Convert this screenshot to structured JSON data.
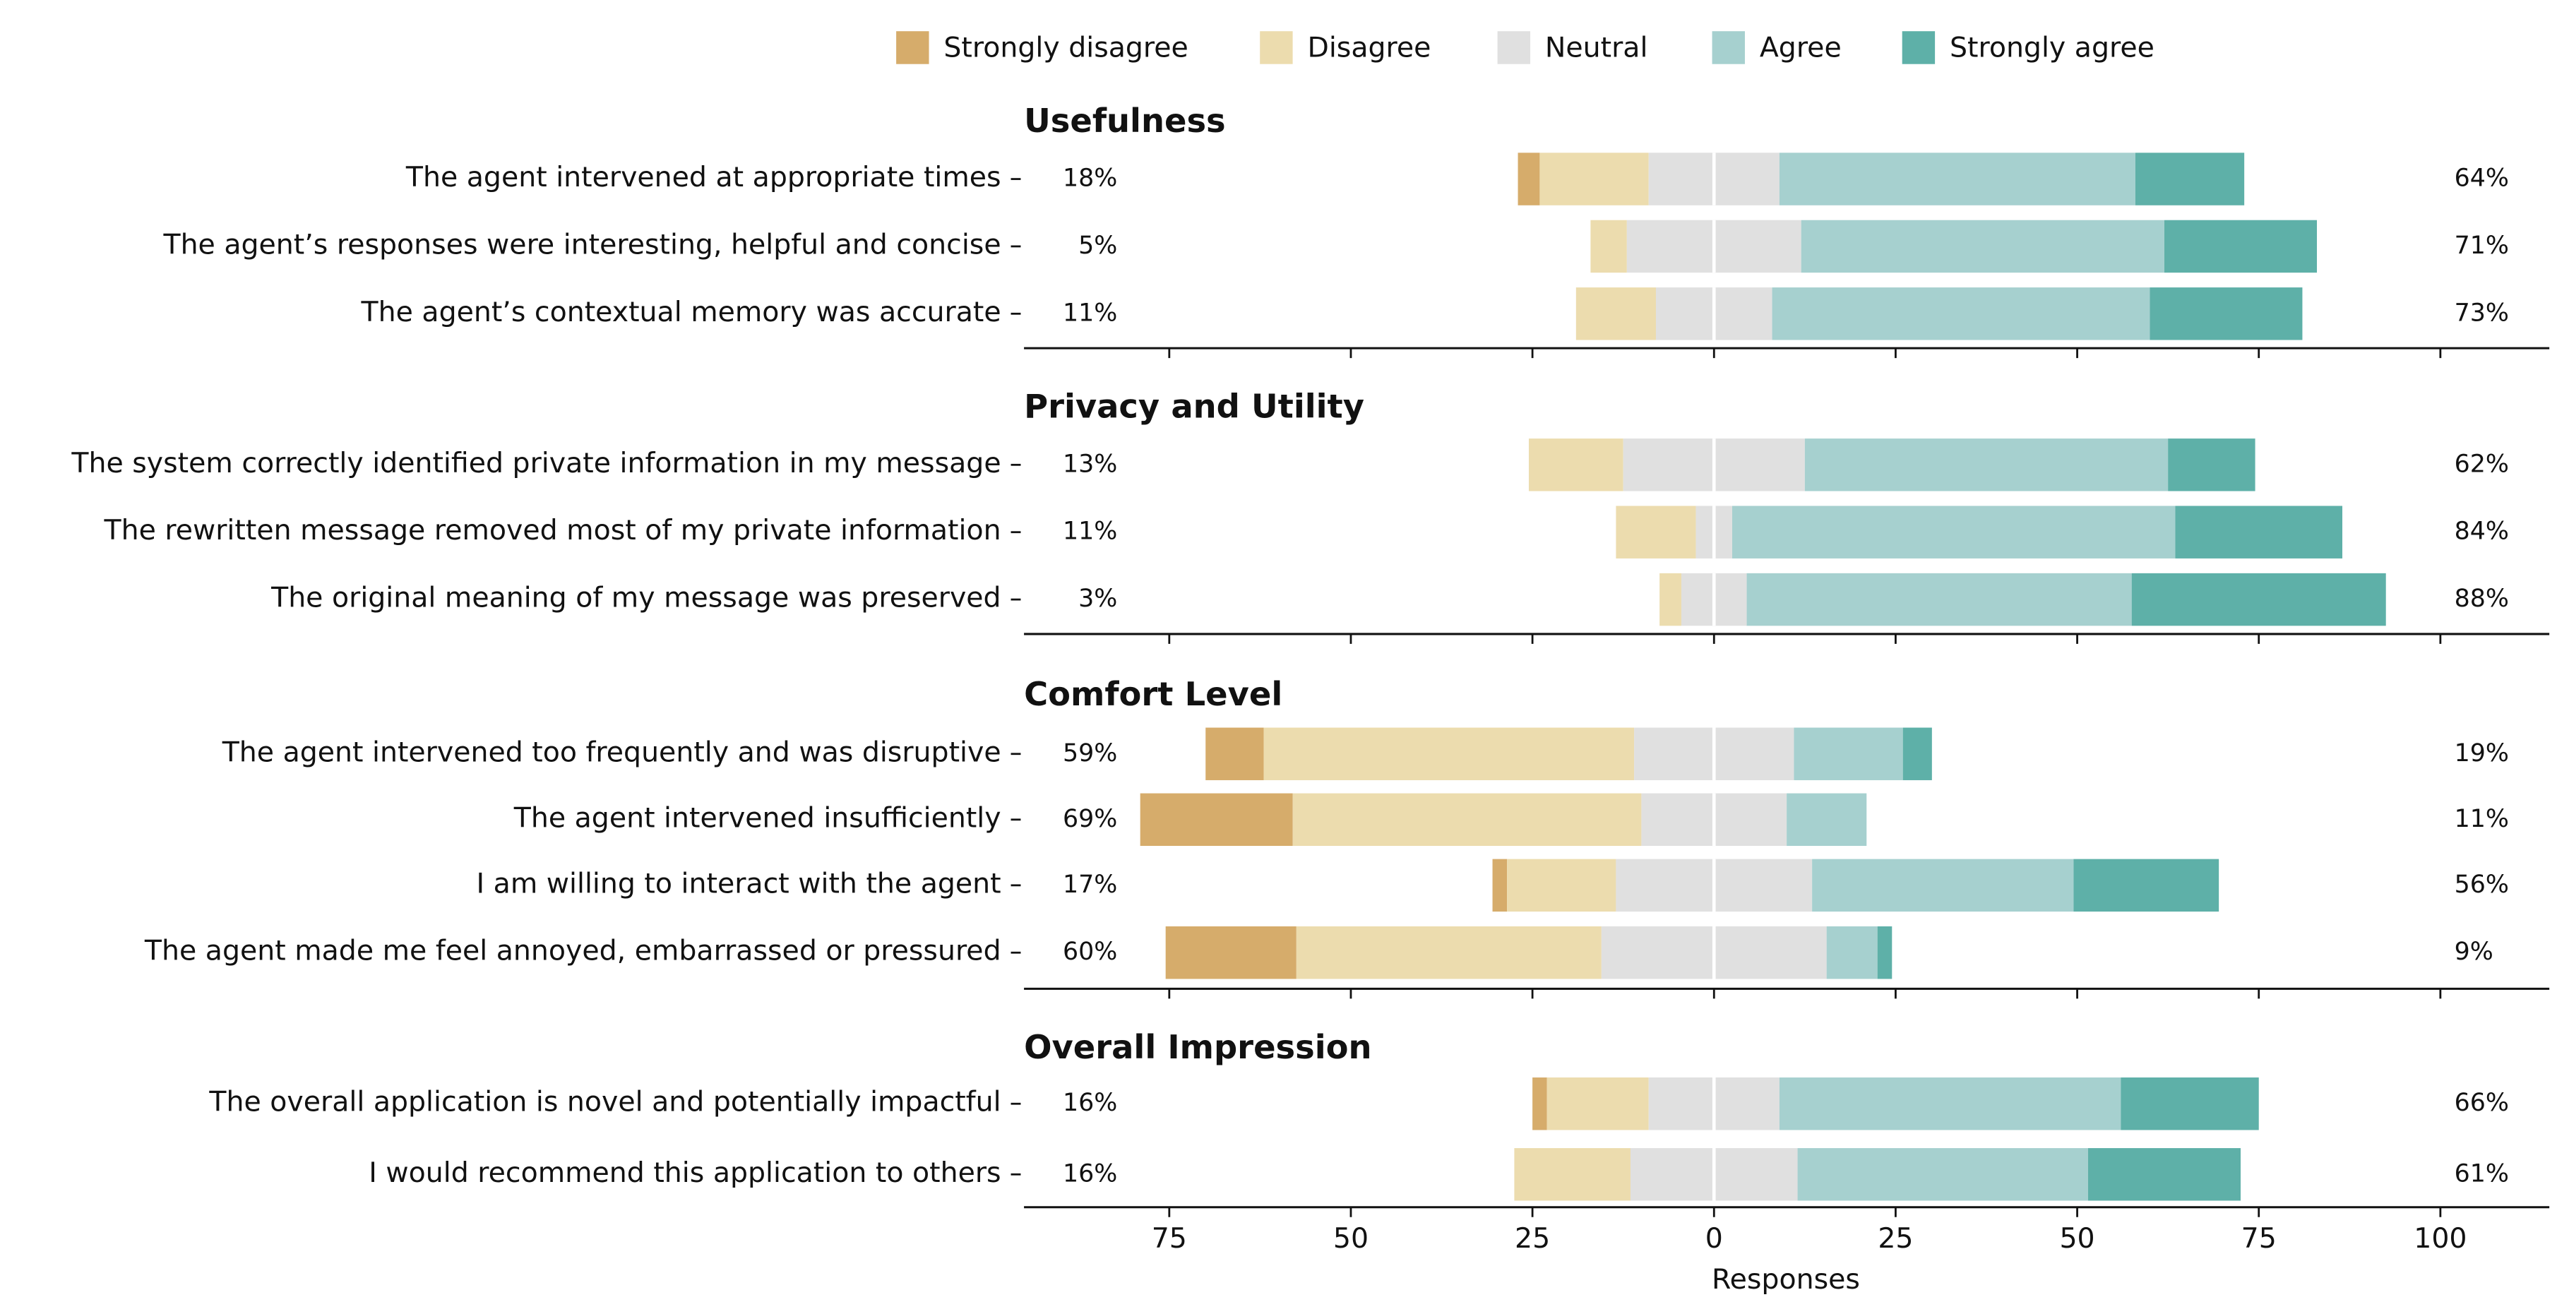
{
  "chart_data": {
    "type": "diverging_bar",
    "legend": [
      {
        "name": "Strongly disagree",
        "color": "#d6ac6b"
      },
      {
        "name": "Disagree",
        "color": "#ecdcae"
      },
      {
        "name": "Neutral",
        "color": "#e0e0e0"
      },
      {
        "name": "Agree",
        "color": "#a6d0cf"
      },
      {
        "name": "Strongly agree",
        "color": "#5eb0a8"
      }
    ],
    "xlabel": "Responses",
    "xlim": [
      -95,
      115
    ],
    "xticks": [
      {
        "value": -75,
        "label": "75"
      },
      {
        "value": -50,
        "label": "50"
      },
      {
        "value": -25,
        "label": "25"
      },
      0,
      25,
      50,
      75,
      100
    ],
    "panels": [
      {
        "title": "Usefulness",
        "categories": [
          "The agent intervened at appropriate times",
          "The agent’s responses were interesting, helpful and concise",
          "The agent’s contextual memory was accurate"
        ],
        "values": [
          [
            3,
            15,
            18,
            49,
            15
          ],
          [
            0,
            5,
            24,
            50,
            21
          ],
          [
            0,
            11,
            16,
            52,
            21
          ]
        ],
        "disagree_labels": [
          "18%",
          "5%",
          "11%"
        ],
        "agree_labels": [
          "64%",
          "71%",
          "73%"
        ]
      },
      {
        "title": "Privacy and Utility",
        "categories": [
          "The system correctly identified private information in my message",
          "The rewritten message removed most of my private information",
          "The original meaning of my message was preserved"
        ],
        "values": [
          [
            0,
            13,
            25,
            50,
            12
          ],
          [
            0,
            11,
            5,
            61,
            23
          ],
          [
            0,
            3,
            9,
            53,
            35
          ]
        ],
        "disagree_labels": [
          "13%",
          "11%",
          "3%"
        ],
        "agree_labels": [
          "62%",
          "84%",
          "88%"
        ]
      },
      {
        "title": "Comfort Level",
        "categories": [
          "The agent intervened too frequently and was disruptive",
          "The agent intervened insufficiently",
          "I am willing to interact with the agent",
          "The agent made me feel annoyed, embarrassed or pressured"
        ],
        "values": [
          [
            8,
            51,
            22,
            15,
            4
          ],
          [
            21,
            48,
            20,
            11,
            0
          ],
          [
            2,
            15,
            27,
            36,
            20
          ],
          [
            18,
            42,
            31,
            7,
            2
          ]
        ],
        "disagree_labels": [
          "59%",
          "69%",
          "17%",
          "60%"
        ],
        "agree_labels": [
          "19%",
          "11%",
          "56%",
          "9%"
        ]
      },
      {
        "title": "Overall Impression",
        "categories": [
          "The overall application is novel and potentially impactful",
          "I would recommend this application to others"
        ],
        "values": [
          [
            2,
            14,
            18,
            47,
            19
          ],
          [
            0,
            16,
            23,
            40,
            21
          ]
        ],
        "disagree_labels": [
          "16%",
          "16%"
        ],
        "agree_labels": [
          "66%",
          "61%"
        ]
      }
    ]
  }
}
